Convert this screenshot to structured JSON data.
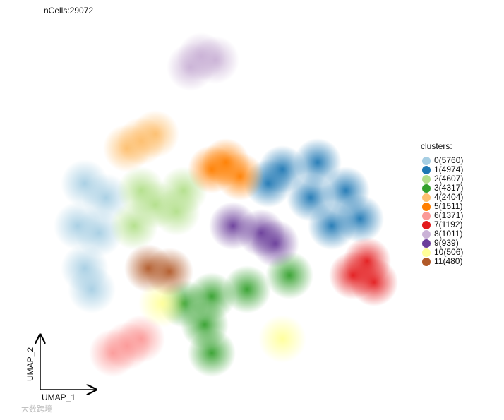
{
  "chart_data": {
    "type": "scatter",
    "title": "nCells:29072",
    "x_label": "UMAP_1",
    "y_label": "UMAP_2",
    "legend_title": "clusters:",
    "xlim": [
      0,
      100
    ],
    "ylim": [
      0,
      100
    ],
    "series": [
      {
        "name": "0(5760)",
        "color": "#a6cee3",
        "x": [
          12,
          10,
          16,
          12,
          18,
          14
        ],
        "y": [
          56,
          44,
          42,
          32,
          52,
          26
        ]
      },
      {
        "name": "1(4974)",
        "color": "#1f78b4",
        "x": [
          68,
          78,
          86,
          90,
          76,
          82,
          64
        ],
        "y": [
          60,
          62,
          54,
          46,
          52,
          44,
          56
        ]
      },
      {
        "name": "2(4607)",
        "color": "#b2df8a",
        "x": [
          32,
          28,
          38,
          40,
          26
        ],
        "y": [
          50,
          54,
          48,
          54,
          44
        ]
      },
      {
        "name": "3(4317)",
        "color": "#33a02c",
        "x": [
          48,
          58,
          70,
          46,
          48,
          40
        ],
        "y": [
          24,
          26,
          30,
          16,
          8,
          22
        ]
      },
      {
        "name": "4(2404)",
        "color": "#fdbf6f",
        "x": [
          28,
          24,
          32
        ],
        "y": [
          68,
          66,
          70
        ]
      },
      {
        "name": "5(1511)",
        "color": "#ff7f00",
        "x": [
          52,
          48,
          56
        ],
        "y": [
          62,
          60,
          58
        ]
      },
      {
        "name": "6(1371)",
        "color": "#fb9a99",
        "x": [
          24,
          20,
          28
        ],
        "y": [
          10,
          8,
          12
        ]
      },
      {
        "name": "7(1192)",
        "color": "#e31a1c",
        "x": [
          92,
          94,
          88
        ],
        "y": [
          34,
          28,
          30
        ]
      },
      {
        "name": "8(1011)",
        "color": "#cab2d6",
        "x": [
          45,
          42,
          49
        ],
        "y": [
          92,
          89,
          91
        ]
      },
      {
        "name": "9(939)",
        "color": "#6a3d9a",
        "x": [
          54,
          62,
          66
        ],
        "y": [
          44,
          42,
          39
        ]
      },
      {
        "name": "10(506)",
        "color": "#ffff99",
        "x": [
          34,
          68
        ],
        "y": [
          22,
          12
        ]
      },
      {
        "name": "11(480)",
        "color": "#b15928",
        "x": [
          30,
          36
        ],
        "y": [
          32,
          31
        ]
      }
    ]
  },
  "watermark": "大数跨境"
}
